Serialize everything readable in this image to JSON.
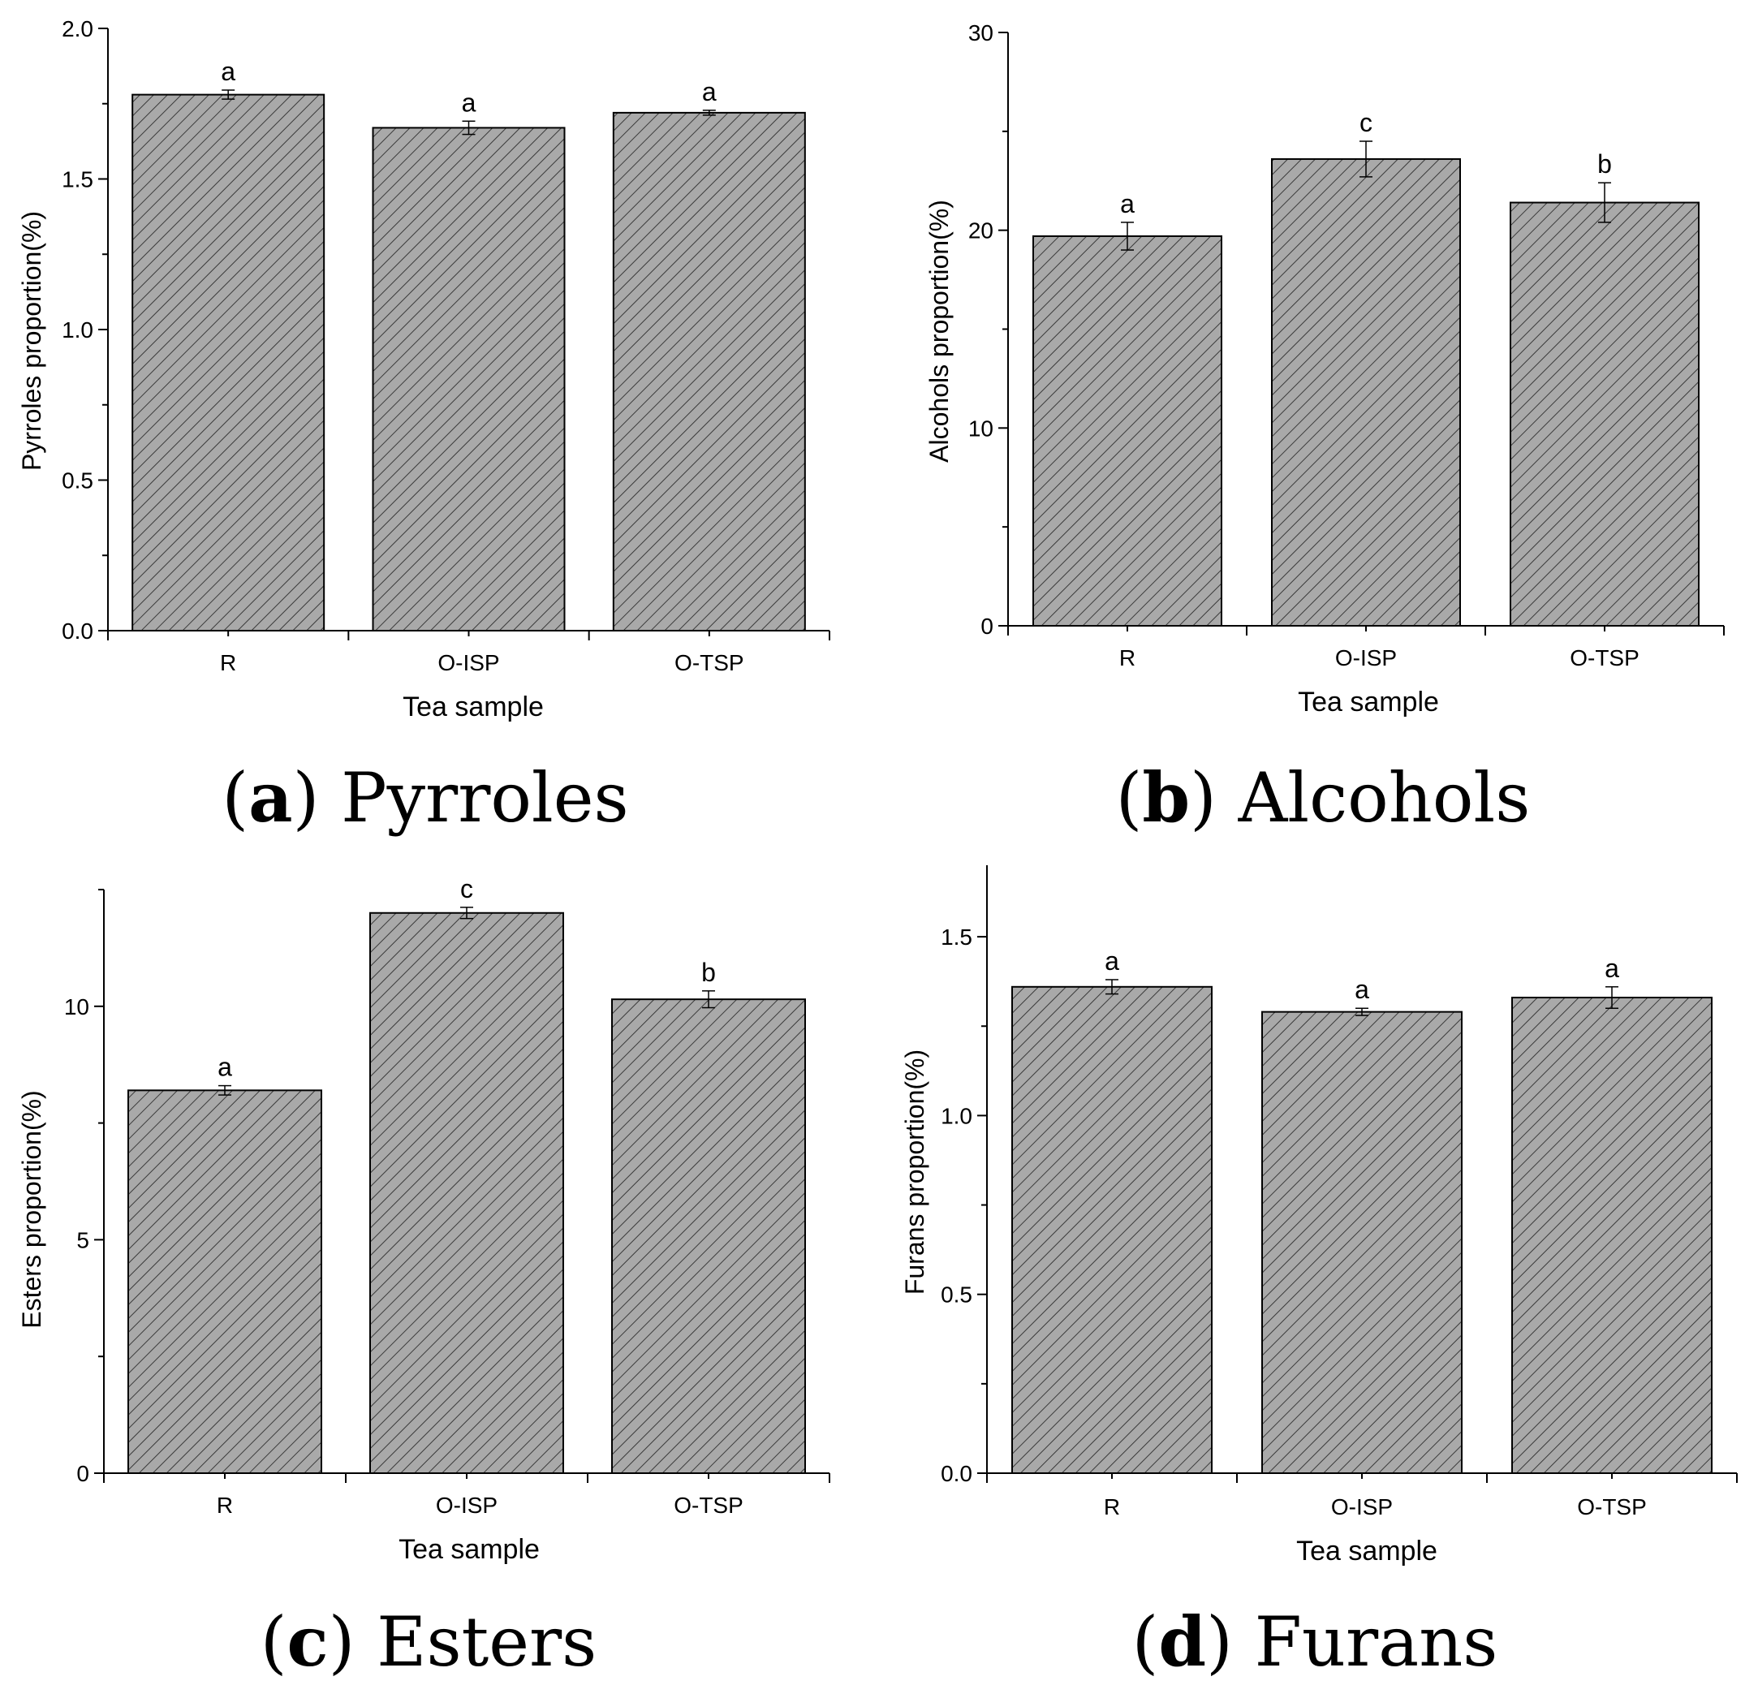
{
  "chart_data": [
    {
      "id": "a",
      "type": "bar",
      "title": "Pyrroles",
      "caption_letter": "a",
      "caption_text": "Pyrroles",
      "xlabel": "Tea sample",
      "ylabel": "Pyrroles  proportion(%)",
      "categories": [
        "R",
        "O-ISP",
        "O-TSP"
      ],
      "values": [
        1.78,
        1.67,
        1.72
      ],
      "errors": [
        0.015,
        0.022,
        0.008
      ],
      "significance": [
        "a",
        "a",
        "a"
      ],
      "ylim": [
        0,
        2.0
      ],
      "yticks": [
        0.0,
        0.5,
        1.0,
        1.5,
        2.0
      ],
      "ytick_labels": [
        "0.0",
        "0.5",
        "1.0",
        "1.5",
        "2.0"
      ],
      "bar_pattern": "diagonal-hatch",
      "bar_color": "#a9a9a9"
    },
    {
      "id": "b",
      "type": "bar",
      "title": "Alcohols",
      "caption_letter": "b",
      "caption_text": "Alcohols",
      "xlabel": "Tea sample",
      "ylabel": "Alcohols  proportion(%)",
      "categories": [
        "R",
        "O-ISP",
        "O-TSP"
      ],
      "values": [
        19.7,
        23.6,
        21.4
      ],
      "errors": [
        0.7,
        0.9,
        1.0
      ],
      "significance": [
        "a",
        "c",
        "b"
      ],
      "ylim": [
        0,
        30
      ],
      "yticks": [
        0,
        10,
        20,
        30
      ],
      "ytick_labels": [
        "0",
        "10",
        "20",
        "30"
      ],
      "bar_pattern": "diagonal-hatch",
      "bar_color": "#a9a9a9"
    },
    {
      "id": "c",
      "type": "bar",
      "title": "Esters",
      "caption_letter": "c",
      "caption_text": "Esters",
      "xlabel": "Tea sample",
      "ylabel": "Esters  proportion(%)",
      "categories": [
        "R",
        "O-ISP",
        "O-TSP"
      ],
      "values": [
        8.2,
        12.0,
        10.15
      ],
      "errors": [
        0.1,
        0.12,
        0.18
      ],
      "significance": [
        "a",
        "c",
        "b"
      ],
      "ylim": [
        0,
        12.5
      ],
      "yticks": [
        0,
        5,
        10
      ],
      "ytick_labels": [
        "0",
        "5",
        "10"
      ],
      "bar_pattern": "diagonal-hatch",
      "bar_color": "#a9a9a9"
    },
    {
      "id": "d",
      "type": "bar",
      "title": "Furans",
      "caption_letter": "d",
      "caption_text": "Furans",
      "xlabel": "Tea sample",
      "ylabel": "Furans  proportion(%)",
      "categories": [
        "R",
        "O-ISP",
        "O-TSP"
      ],
      "values": [
        1.36,
        1.29,
        1.33
      ],
      "errors": [
        0.02,
        0.01,
        0.03
      ],
      "significance": [
        "a",
        "a",
        "a"
      ],
      "ylim": [
        0,
        1.7
      ],
      "yticks": [
        0.0,
        0.5,
        1.0,
        1.5
      ],
      "ytick_labels": [
        "0.0",
        "0.5",
        "1.0",
        "1.5"
      ],
      "bar_pattern": "diagonal-hatch",
      "bar_color": "#a9a9a9"
    }
  ]
}
